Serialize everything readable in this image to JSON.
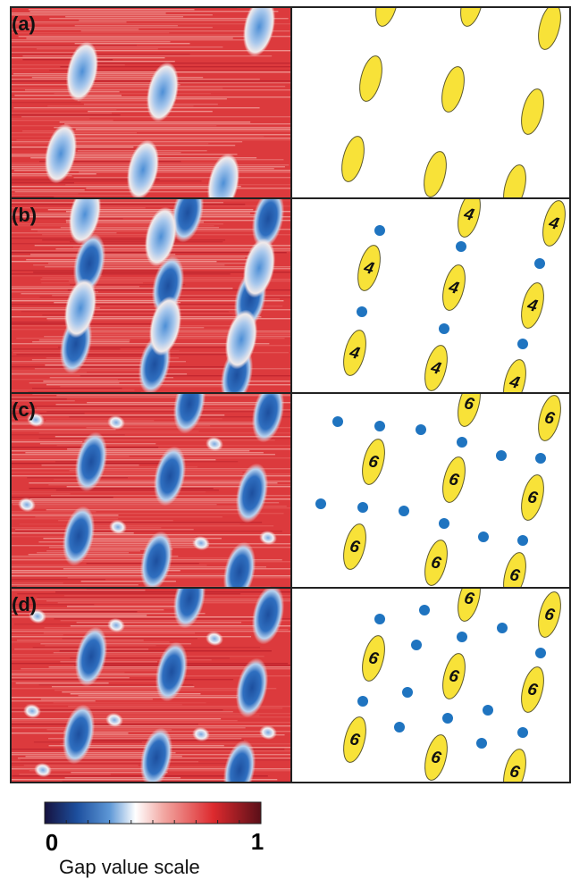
{
  "panels": [
    {
      "label": "(a)"
    },
    {
      "label": "(b)",
      "count_label": "4"
    },
    {
      "label": "(c)",
      "count_label": "6"
    },
    {
      "label": "(d)",
      "count_label": "6"
    }
  ],
  "colorbar": {
    "min_label": "0",
    "max_label": "1",
    "title": "Gap value scale"
  }
}
